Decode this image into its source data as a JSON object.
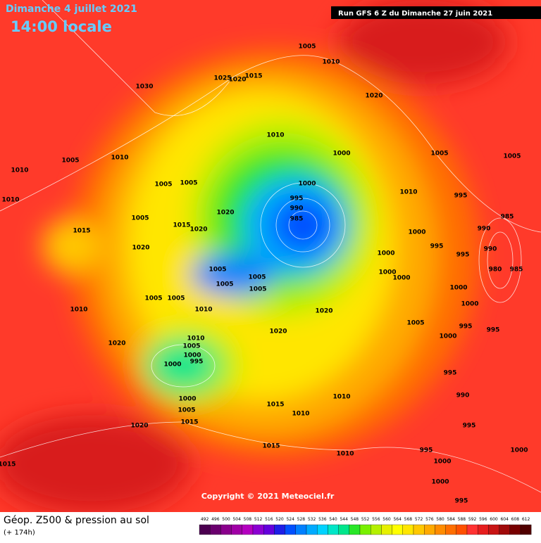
{
  "header": {
    "date": "Dimanche 4 juillet 2021",
    "time": "14:00 locale",
    "run": "Run GFS 6 Z du Dimanche 27 juin 2021"
  },
  "footer": {
    "title": "Géop. Z500 & pression au sol",
    "lead": "(+ 174h)",
    "copyright": "Copyright © 2021 Meteociel.fr"
  },
  "colorbar": {
    "ticks": [
      492,
      496,
      500,
      504,
      508,
      512,
      516,
      520,
      524,
      528,
      532,
      536,
      540,
      544,
      548,
      552,
      556,
      560,
      564,
      568,
      572,
      576,
      580,
      584,
      588,
      592,
      596,
      600,
      604,
      608,
      612
    ],
    "colors": [
      "#4b0050",
      "#6a006e",
      "#8a008c",
      "#a000a6",
      "#b400c0",
      "#8c00d2",
      "#6400dc",
      "#1e1ee6",
      "#0050ff",
      "#0080ff",
      "#00aaff",
      "#00d2ff",
      "#00e6c8",
      "#00e68c",
      "#28e628",
      "#78f000",
      "#b4f000",
      "#e6f000",
      "#ffff00",
      "#ffe600",
      "#ffc800",
      "#ffaa00",
      "#ff8c00",
      "#ff6e00",
      "#ff5000",
      "#ff3232",
      "#e61e1e",
      "#c81414",
      "#a00a0a",
      "#780000",
      "#500000"
    ]
  },
  "pressure_labels": [
    1030,
    1025,
    1020,
    1015,
    1005,
    1010,
    1020,
    1010,
    1000,
    1005,
    1005,
    1010,
    1005,
    1010,
    1005,
    1005,
    1010,
    1000,
    995,
    990,
    985,
    1010,
    995,
    1020,
    1005,
    1015,
    1020,
    1015,
    1000,
    990,
    985,
    1020,
    995,
    1000,
    995,
    990,
    1005,
    1000,
    1000,
    980,
    985,
    1005,
    1005,
    1005,
    1000,
    1005,
    1005,
    1010,
    1020,
    1000,
    1010,
    1005,
    995,
    995,
    1020,
    1000,
    1010,
    1020,
    1005,
    1000,
    995,
    1000,
    995,
    990,
    1000,
    1005,
    1015,
    1020,
    1010,
    1015,
    1010,
    995,
    995,
    1015,
    1000,
    1010,
    1000,
    1015,
    1000,
    995
  ]
}
